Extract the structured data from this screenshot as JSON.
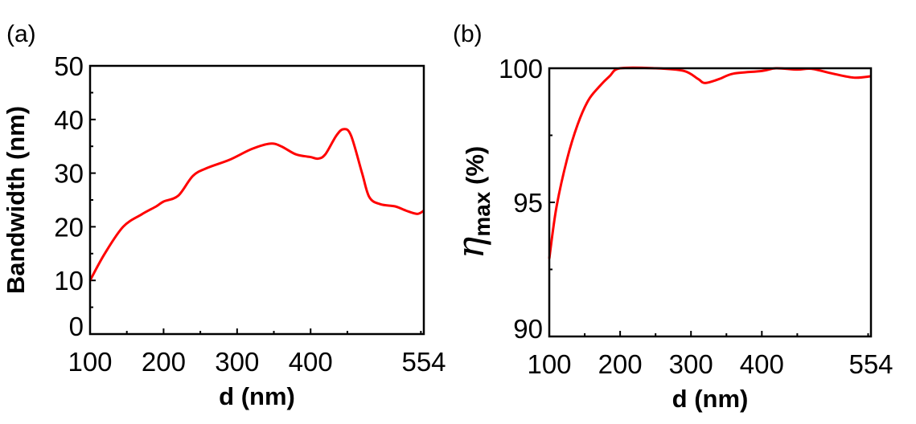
{
  "chart_data": [
    {
      "panel_label": "(a)",
      "type": "line",
      "xlabel": "d (nm)",
      "ylabel": "Bandwidth (nm)",
      "xlim": [
        100,
        554
      ],
      "ylim": [
        0,
        50
      ],
      "xticks": [
        100,
        200,
        300,
        400,
        554
      ],
      "yticks": [
        0,
        10,
        20,
        30,
        40,
        50
      ],
      "grid": false,
      "line_color": "#ff0000",
      "x": [
        100,
        120,
        145,
        170,
        190,
        200,
        220,
        240,
        260,
        290,
        320,
        345,
        360,
        380,
        400,
        410,
        420,
        435,
        445,
        455,
        470,
        480,
        495,
        515,
        530,
        545,
        554
      ],
      "y": [
        10,
        15,
        20,
        22.3,
        23.8,
        24.7,
        25.8,
        29.5,
        31,
        32.5,
        34.5,
        35.5,
        35,
        33.5,
        33,
        32.7,
        33.5,
        37,
        38.2,
        37,
        30,
        25.5,
        24.2,
        23.8,
        23,
        22.4,
        23
      ]
    },
    {
      "panel_label": "(b)",
      "type": "line",
      "xlabel": "d (nm)",
      "ylabel_symbol": "η",
      "ylabel_sub": "max",
      "ylabel_unit": "(%)",
      "xlim": [
        100,
        554
      ],
      "ylim": [
        90,
        100
      ],
      "xticks": [
        100,
        200,
        300,
        400,
        554
      ],
      "yticks": [
        90,
        95,
        100
      ],
      "grid": false,
      "line_color": "#ff0000",
      "x": [
        100,
        110,
        125,
        140,
        155,
        170,
        185,
        200,
        250,
        290,
        310,
        320,
        340,
        360,
        400,
        420,
        450,
        470,
        500,
        530,
        554
      ],
      "y": [
        92.9,
        94.8,
        96.6,
        97.9,
        98.8,
        99.3,
        99.7,
        100,
        100,
        99.9,
        99.6,
        99.45,
        99.6,
        99.8,
        99.9,
        100,
        99.95,
        99.98,
        99.8,
        99.65,
        99.7
      ]
    }
  ]
}
